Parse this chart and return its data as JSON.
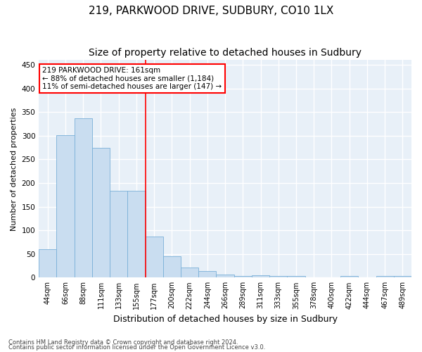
{
  "title": "219, PARKWOOD DRIVE, SUDBURY, CO10 1LX",
  "subtitle": "Size of property relative to detached houses in Sudbury",
  "xlabel": "Distribution of detached houses by size in Sudbury",
  "ylabel": "Number of detached properties",
  "footnote1": "Contains HM Land Registry data © Crown copyright and database right 2024.",
  "footnote2": "Contains public sector information licensed under the Open Government Licence v3.0.",
  "categories": [
    "44sqm",
    "66sqm",
    "88sqm",
    "111sqm",
    "133sqm",
    "155sqm",
    "177sqm",
    "200sqm",
    "222sqm",
    "244sqm",
    "266sqm",
    "289sqm",
    "311sqm",
    "333sqm",
    "355sqm",
    "378sqm",
    "400sqm",
    "422sqm",
    "444sqm",
    "467sqm",
    "489sqm"
  ],
  "values": [
    60,
    301,
    337,
    275,
    184,
    184,
    87,
    45,
    22,
    14,
    6,
    4,
    5,
    4,
    4,
    0,
    0,
    4,
    0,
    4,
    4
  ],
  "bar_color": "#c9ddf0",
  "bar_edge_color": "#7ab0d8",
  "vline_x_index": 5.5,
  "vline_color": "red",
  "annotation_title": "219 PARKWOOD DRIVE: 161sqm",
  "annotation_line1": "← 88% of detached houses are smaller (1,184)",
  "annotation_line2": "11% of semi-detached houses are larger (147) →",
  "annotation_box_color": "white",
  "annotation_box_edge_color": "red",
  "ylim": [
    0,
    460
  ],
  "yticks": [
    0,
    50,
    100,
    150,
    200,
    250,
    300,
    350,
    400,
    450
  ],
  "background_color": "#e8f0f8",
  "grid_color": "white",
  "title_fontsize": 11,
  "subtitle_fontsize": 10,
  "tick_fontsize": 7,
  "ylabel_fontsize": 8,
  "xlabel_fontsize": 9,
  "annotation_fontsize": 7.5,
  "footnote_fontsize": 6
}
